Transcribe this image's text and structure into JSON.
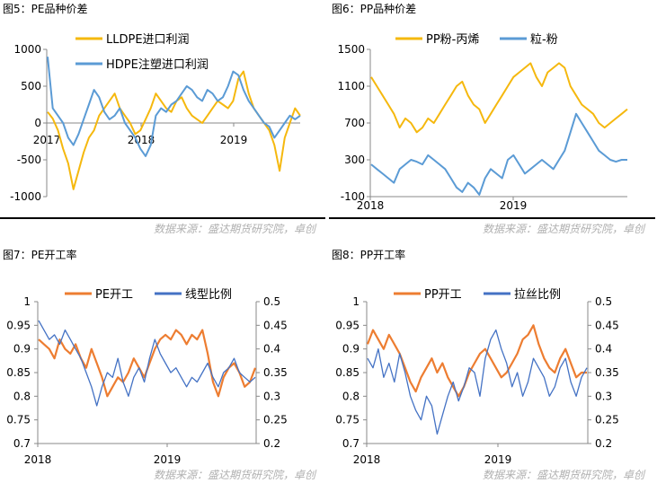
{
  "source_text": "数据来源：盛达期货研究院，卓创",
  "colors": {
    "orange": "#F5B80E",
    "blue": "#5B9BD5",
    "orange2": "#ED7D31",
    "navy": "#4472C4"
  },
  "chart_data": [
    {
      "type": "line",
      "title": "图5：PE品种价差",
      "x_labels": [
        "2017",
        "2018",
        "2019"
      ],
      "y_ticks": [
        1000,
        500,
        0,
        -500,
        -1000
      ],
      "ylim": [
        -1000,
        1000
      ],
      "series": [
        {
          "name": "LLDPE进口利润",
          "color": "#F5B80E",
          "values": [
            150,
            60,
            -100,
            -350,
            -550,
            -900,
            -650,
            -400,
            -200,
            -100,
            100,
            200,
            300,
            400,
            200,
            100,
            0,
            -150,
            -100,
            50,
            200,
            400,
            300,
            200,
            150,
            300,
            350,
            200,
            100,
            50,
            0,
            100,
            200,
            300,
            250,
            200,
            300,
            600,
            700,
            400,
            200,
            100,
            0,
            -100,
            -300,
            -650,
            -200,
            0,
            200,
            100
          ]
        },
        {
          "name": "HDPE注塑进口利润",
          "color": "#5B9BD5",
          "values": [
            900,
            200,
            100,
            0,
            -200,
            -300,
            -150,
            50,
            250,
            450,
            350,
            150,
            50,
            100,
            200,
            0,
            -100,
            -200,
            -350,
            -450,
            -300,
            100,
            200,
            150,
            250,
            300,
            400,
            500,
            450,
            350,
            300,
            450,
            400,
            300,
            350,
            500,
            700,
            650,
            450,
            300,
            200,
            100,
            0,
            -50,
            -200,
            -100,
            0,
            100,
            50,
            100
          ]
        }
      ]
    },
    {
      "type": "line",
      "title": "图6：PP品种价差",
      "x_labels": [
        "2018",
        "2019"
      ],
      "y_ticks": [
        1500,
        1100,
        700,
        300,
        -100
      ],
      "ylim": [
        -100,
        1500
      ],
      "series": [
        {
          "name": "PP粉-丙烯",
          "color": "#F5B80E",
          "values": [
            1200,
            1100,
            1000,
            900,
            800,
            650,
            750,
            700,
            600,
            650,
            750,
            700,
            800,
            900,
            1000,
            1100,
            1150,
            1000,
            900,
            850,
            700,
            800,
            900,
            1000,
            1100,
            1200,
            1250,
            1300,
            1350,
            1200,
            1100,
            1250,
            1300,
            1350,
            1300,
            1100,
            1000,
            900,
            850,
            800,
            700,
            650,
            700,
            750,
            800,
            850
          ]
        },
        {
          "name": "粒-粉",
          "color": "#5B9BD5",
          "values": [
            250,
            200,
            150,
            100,
            50,
            200,
            250,
            300,
            280,
            250,
            350,
            300,
            250,
            200,
            100,
            0,
            -50,
            50,
            0,
            -80,
            100,
            200,
            150,
            100,
            300,
            350,
            250,
            150,
            200,
            250,
            300,
            250,
            200,
            300,
            400,
            600,
            800,
            700,
            600,
            500,
            400,
            350,
            300,
            280,
            300,
            300
          ]
        }
      ]
    },
    {
      "type": "line",
      "title": "图7：PE开工率",
      "x_labels": [
        "2018",
        "2019"
      ],
      "y_left_ticks": [
        "1",
        "0.95",
        "0.9",
        "0.85",
        "0.8",
        "0.75",
        "0.7"
      ],
      "y_right_ticks": [
        "0.5",
        "0.45",
        "0.4",
        "0.35",
        "0.3",
        "0.25",
        "0.2"
      ],
      "ylim_left": [
        0.7,
        1
      ],
      "ylim_right": [
        0.2,
        0.5
      ],
      "series": [
        {
          "name": "PE开工",
          "axis": "left",
          "color": "#ED7D31",
          "values": [
            0.92,
            0.91,
            0.9,
            0.88,
            0.92,
            0.9,
            0.89,
            0.91,
            0.88,
            0.86,
            0.9,
            0.87,
            0.84,
            0.8,
            0.82,
            0.84,
            0.83,
            0.85,
            0.88,
            0.86,
            0.84,
            0.87,
            0.9,
            0.92,
            0.93,
            0.92,
            0.94,
            0.93,
            0.91,
            0.93,
            0.92,
            0.94,
            0.89,
            0.83,
            0.8,
            0.84,
            0.86,
            0.87,
            0.85,
            0.82,
            0.83,
            0.86
          ]
        },
        {
          "name": "线型比例",
          "axis": "right",
          "color": "#4472C4",
          "values": [
            0.46,
            0.44,
            0.42,
            0.43,
            0.41,
            0.44,
            0.42,
            0.4,
            0.38,
            0.35,
            0.32,
            0.28,
            0.32,
            0.35,
            0.34,
            0.38,
            0.33,
            0.3,
            0.34,
            0.36,
            0.33,
            0.38,
            0.42,
            0.39,
            0.37,
            0.35,
            0.36,
            0.34,
            0.32,
            0.34,
            0.33,
            0.35,
            0.37,
            0.34,
            0.32,
            0.35,
            0.36,
            0.38,
            0.35,
            0.34,
            0.33,
            0.34
          ]
        }
      ]
    },
    {
      "type": "line",
      "title": "图8：PP开工率",
      "x_labels": [
        "2018",
        "2019"
      ],
      "y_left_ticks": [
        "1",
        "0.95",
        "0.9",
        "0.85",
        "0.8",
        "0.75",
        "0.7"
      ],
      "y_right_ticks": [
        "0.5",
        "0.45",
        "0.4",
        "0.35",
        "0.3",
        "0.25",
        "0.2"
      ],
      "ylim_left": [
        0.7,
        1
      ],
      "ylim_right": [
        0.2,
        0.5
      ],
      "series": [
        {
          "name": "PP开工",
          "axis": "left",
          "color": "#ED7D31",
          "values": [
            0.91,
            0.94,
            0.92,
            0.9,
            0.93,
            0.91,
            0.89,
            0.86,
            0.83,
            0.81,
            0.84,
            0.86,
            0.88,
            0.85,
            0.87,
            0.84,
            0.82,
            0.8,
            0.82,
            0.85,
            0.87,
            0.89,
            0.9,
            0.88,
            0.86,
            0.84,
            0.85,
            0.87,
            0.89,
            0.92,
            0.93,
            0.95,
            0.91,
            0.88,
            0.86,
            0.85,
            0.88,
            0.9,
            0.87,
            0.84,
            0.85,
            0.85
          ]
        },
        {
          "name": "拉丝比例",
          "axis": "right",
          "color": "#4472C4",
          "values": [
            0.38,
            0.36,
            0.4,
            0.34,
            0.37,
            0.33,
            0.39,
            0.35,
            0.3,
            0.27,
            0.25,
            0.3,
            0.28,
            0.22,
            0.26,
            0.3,
            0.33,
            0.29,
            0.32,
            0.36,
            0.35,
            0.3,
            0.38,
            0.42,
            0.44,
            0.4,
            0.37,
            0.32,
            0.35,
            0.3,
            0.33,
            0.38,
            0.36,
            0.34,
            0.3,
            0.32,
            0.36,
            0.38,
            0.33,
            0.3,
            0.34,
            0.36
          ]
        }
      ]
    }
  ]
}
